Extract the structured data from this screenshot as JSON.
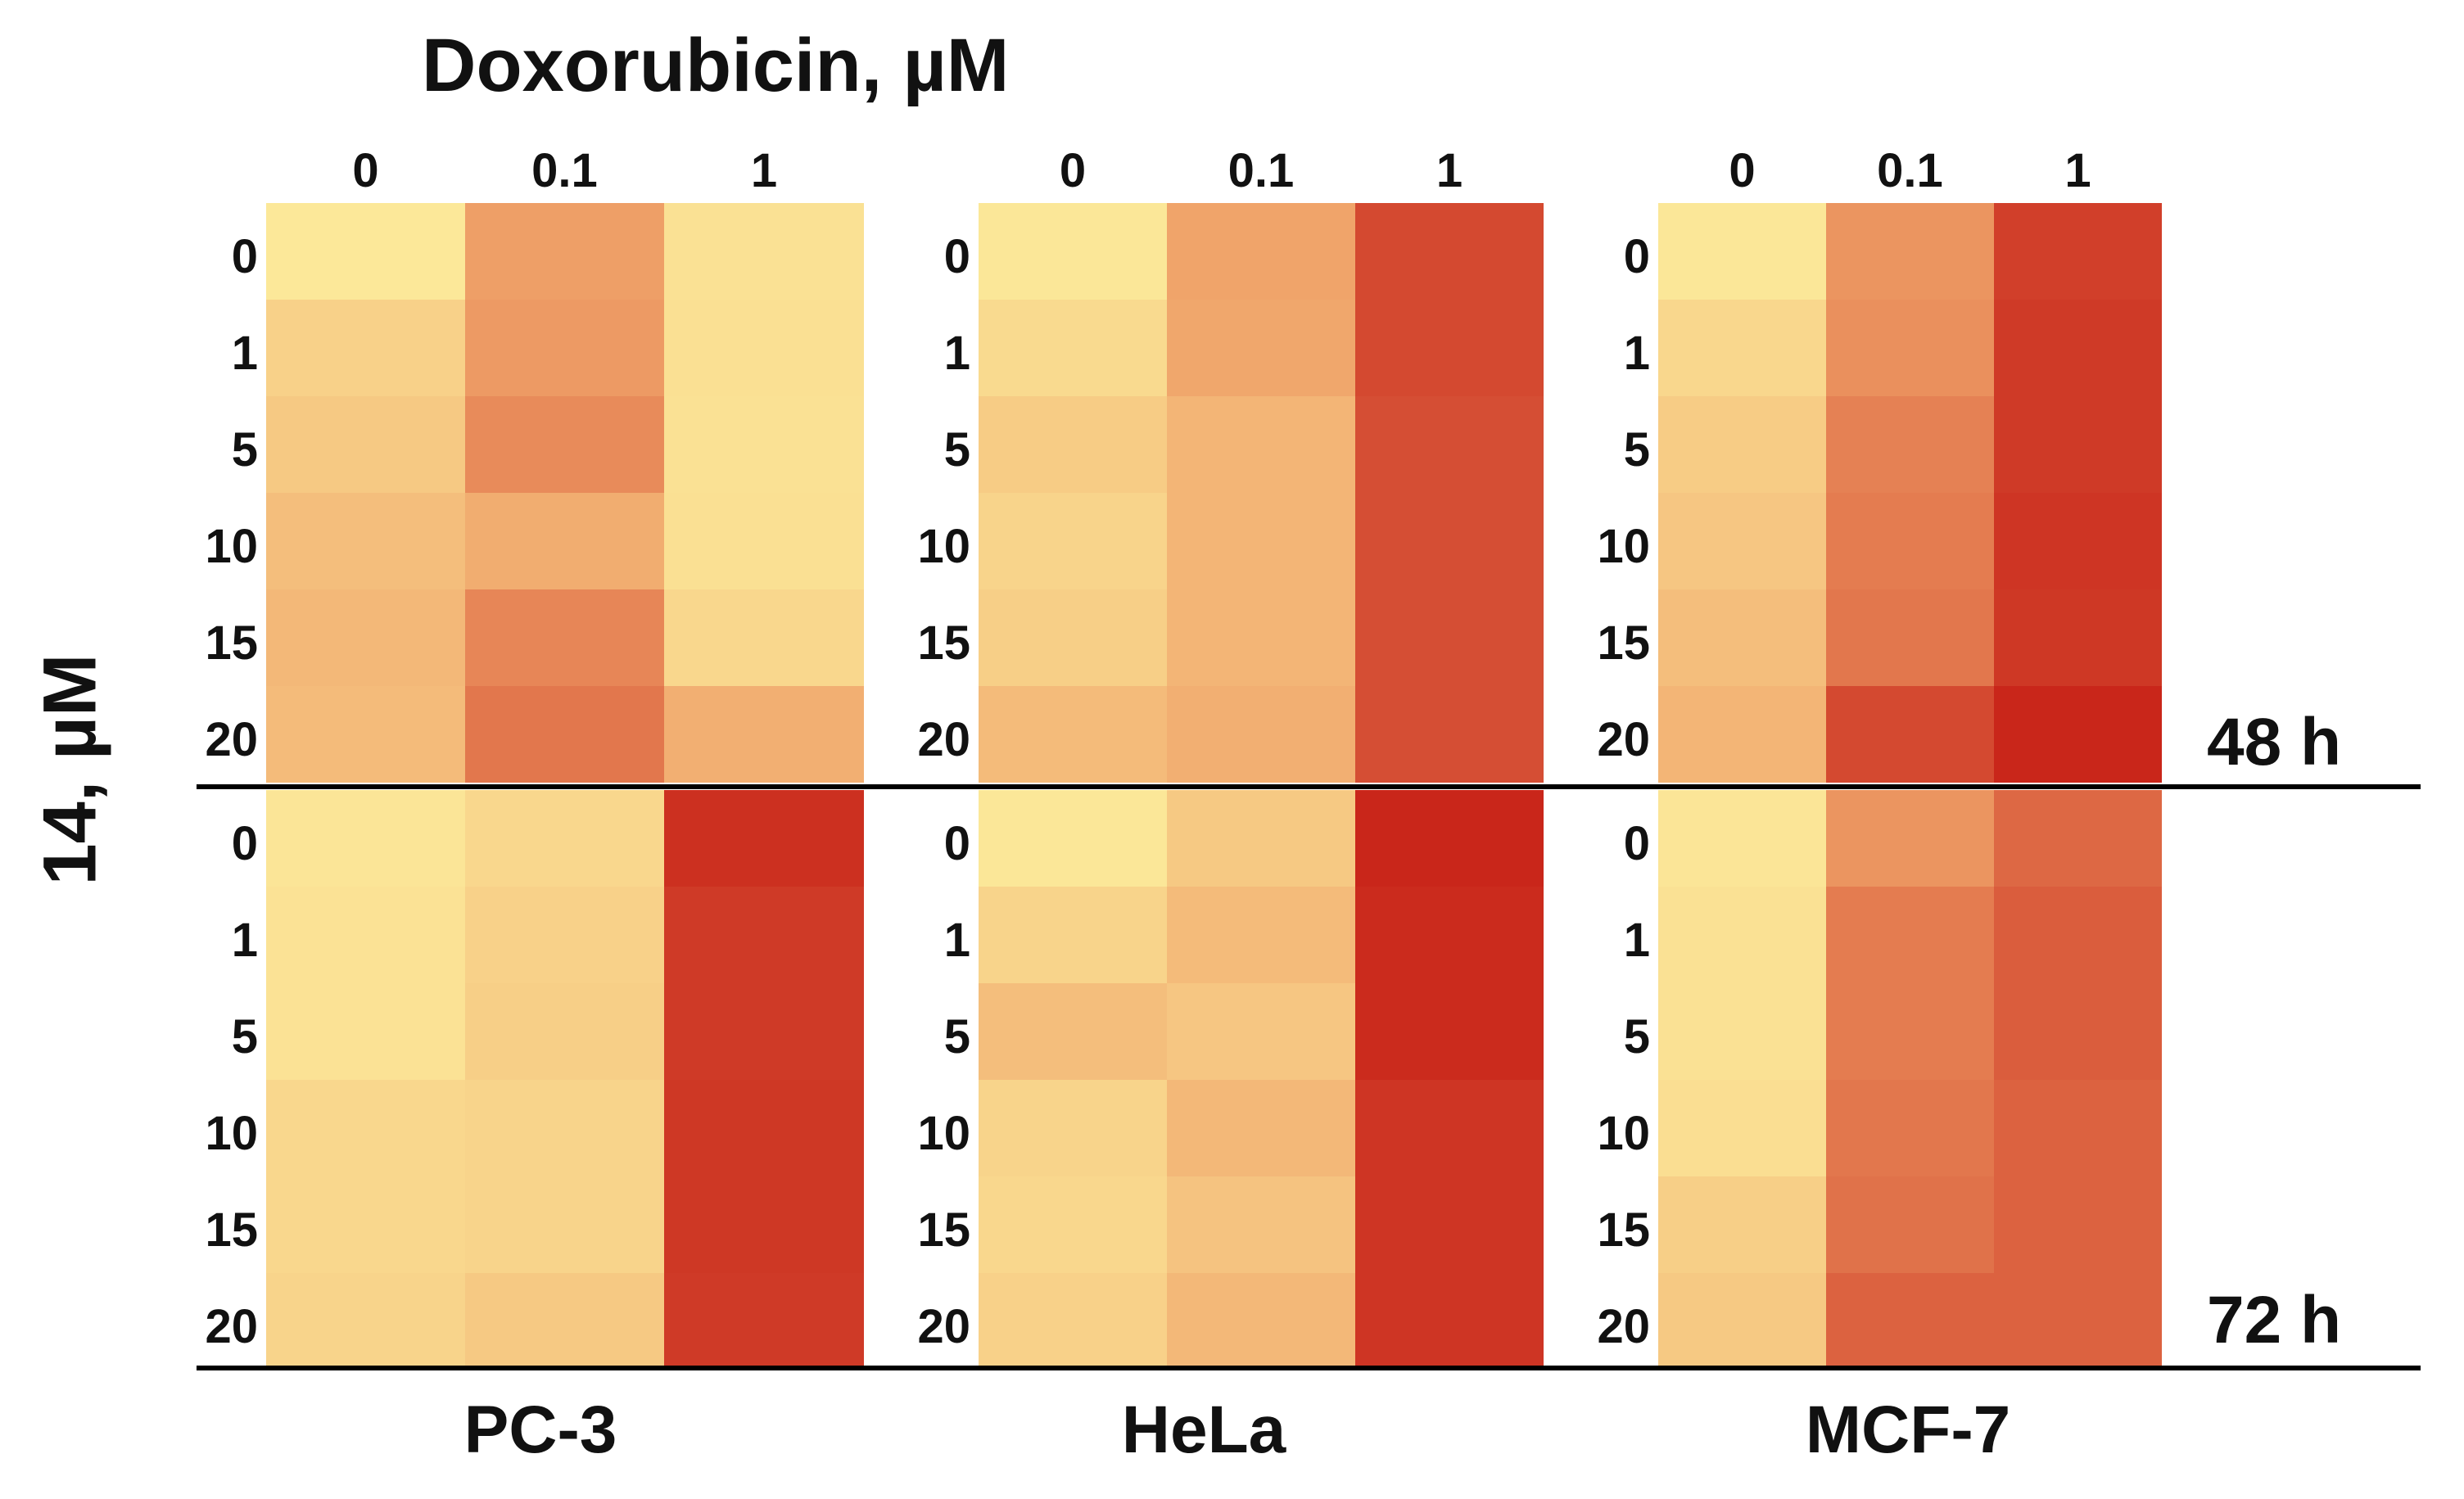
{
  "chart_data": {
    "type": "heatmap",
    "title": "Doxorubicin, µM",
    "ylabel": "14, µM",
    "col_labels": [
      "0",
      "0.1",
      "1"
    ],
    "row_labels": [
      "0",
      "1",
      "5",
      "10",
      "15",
      "20"
    ],
    "cell_lines": [
      "PC-3",
      "HeLa",
      "MCF-7"
    ],
    "timepoints": [
      "48 h",
      "72 h"
    ],
    "color_scale": {
      "low": "#FCEB9B",
      "mid": "#F0A46A",
      "high": "#C9261A"
    },
    "value_scale": [
      0,
      1
    ],
    "panels": [
      {
        "cell_line": "PC-3",
        "time": "48 h",
        "values": [
          [
            0.02,
            0.52,
            0.07
          ],
          [
            0.18,
            0.54,
            0.08
          ],
          [
            0.24,
            0.6,
            0.07
          ],
          [
            0.32,
            0.44,
            0.08
          ],
          [
            0.36,
            0.62,
            0.14
          ],
          [
            0.34,
            0.68,
            0.42
          ]
        ]
      },
      {
        "cell_line": "HeLa",
        "time": "48 h",
        "values": [
          [
            0.03,
            0.5,
            0.86
          ],
          [
            0.12,
            0.48,
            0.86
          ],
          [
            0.22,
            0.38,
            0.84
          ],
          [
            0.16,
            0.38,
            0.84
          ],
          [
            0.2,
            0.38,
            0.84
          ],
          [
            0.34,
            0.42,
            0.84
          ]
        ]
      },
      {
        "cell_line": "MCF-7",
        "time": "48 h",
        "values": [
          [
            0.03,
            0.56,
            0.9
          ],
          [
            0.14,
            0.58,
            0.92
          ],
          [
            0.22,
            0.64,
            0.92
          ],
          [
            0.26,
            0.66,
            0.94
          ],
          [
            0.32,
            0.68,
            0.93
          ],
          [
            0.38,
            0.86,
            1.0
          ]
        ]
      },
      {
        "cell_line": "PC-3",
        "time": "72 h",
        "values": [
          [
            0.04,
            0.14,
            0.96
          ],
          [
            0.06,
            0.18,
            0.92
          ],
          [
            0.06,
            0.2,
            0.92
          ],
          [
            0.14,
            0.16,
            0.93
          ],
          [
            0.14,
            0.16,
            0.93
          ],
          [
            0.16,
            0.24,
            0.92
          ]
        ]
      },
      {
        "cell_line": "HeLa",
        "time": "72 h",
        "values": [
          [
            0.03,
            0.24,
            1.0
          ],
          [
            0.16,
            0.34,
            0.98
          ],
          [
            0.32,
            0.26,
            0.98
          ],
          [
            0.16,
            0.36,
            0.94
          ],
          [
            0.14,
            0.28,
            0.94
          ],
          [
            0.18,
            0.36,
            0.94
          ]
        ]
      },
      {
        "cell_line": "MCF-7",
        "time": "72 h",
        "values": [
          [
            0.04,
            0.56,
            0.74
          ],
          [
            0.07,
            0.66,
            0.78
          ],
          [
            0.07,
            0.66,
            0.78
          ],
          [
            0.09,
            0.68,
            0.76
          ],
          [
            0.2,
            0.7,
            0.76
          ],
          [
            0.24,
            0.76,
            0.76
          ]
        ]
      }
    ]
  }
}
